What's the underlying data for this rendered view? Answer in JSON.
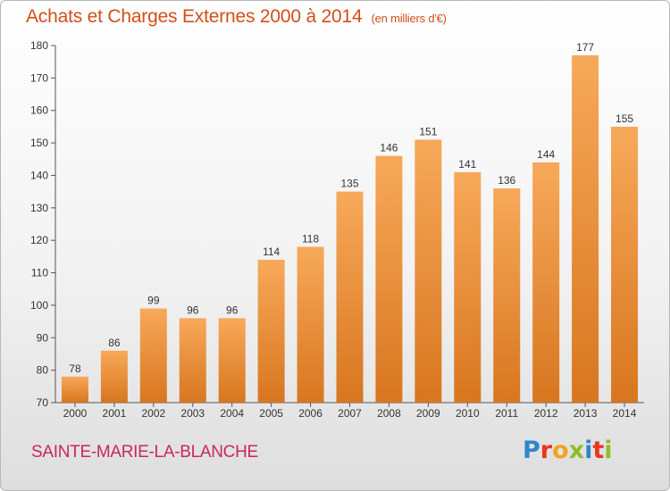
{
  "header": {
    "title": "Achats et Charges Externes 2000 à 2014",
    "subtitle": "(en milliers d'€)"
  },
  "footer": {
    "commune": "SAINTE-MARIE-LA-BLANCHE",
    "logo_letters": [
      {
        "char": "P",
        "color": "#2f86c8"
      },
      {
        "char": "r",
        "color": "#e8361f"
      },
      {
        "char": "o",
        "color": "#f2a31b"
      },
      {
        "char": "x",
        "color": "#8cbf2a"
      },
      {
        "char": "i",
        "color": "#2f86c8"
      },
      {
        "char": "t",
        "color": "#e8361f"
      },
      {
        "char": "i",
        "color": "#8cbf2a"
      }
    ]
  },
  "chart_data": {
    "type": "bar",
    "title": "Achats et Charges Externes 2000 à 2014",
    "subtitle": "(en milliers d'€)",
    "categories": [
      "2000",
      "2001",
      "2002",
      "2003",
      "2004",
      "2005",
      "2006",
      "2007",
      "2008",
      "2009",
      "2010",
      "2011",
      "2012",
      "2013",
      "2014"
    ],
    "values": [
      78,
      86,
      99,
      96,
      96,
      114,
      118,
      135,
      146,
      151,
      141,
      136,
      144,
      177,
      155
    ],
    "ylim": [
      70,
      180
    ],
    "yticks": [
      70,
      80,
      90,
      100,
      110,
      120,
      130,
      140,
      150,
      160,
      170,
      180
    ],
    "grid": false,
    "colors": {
      "bar_light": "#f7a95a",
      "bar_dark": "#d8761f",
      "title": "#d24f18"
    }
  }
}
